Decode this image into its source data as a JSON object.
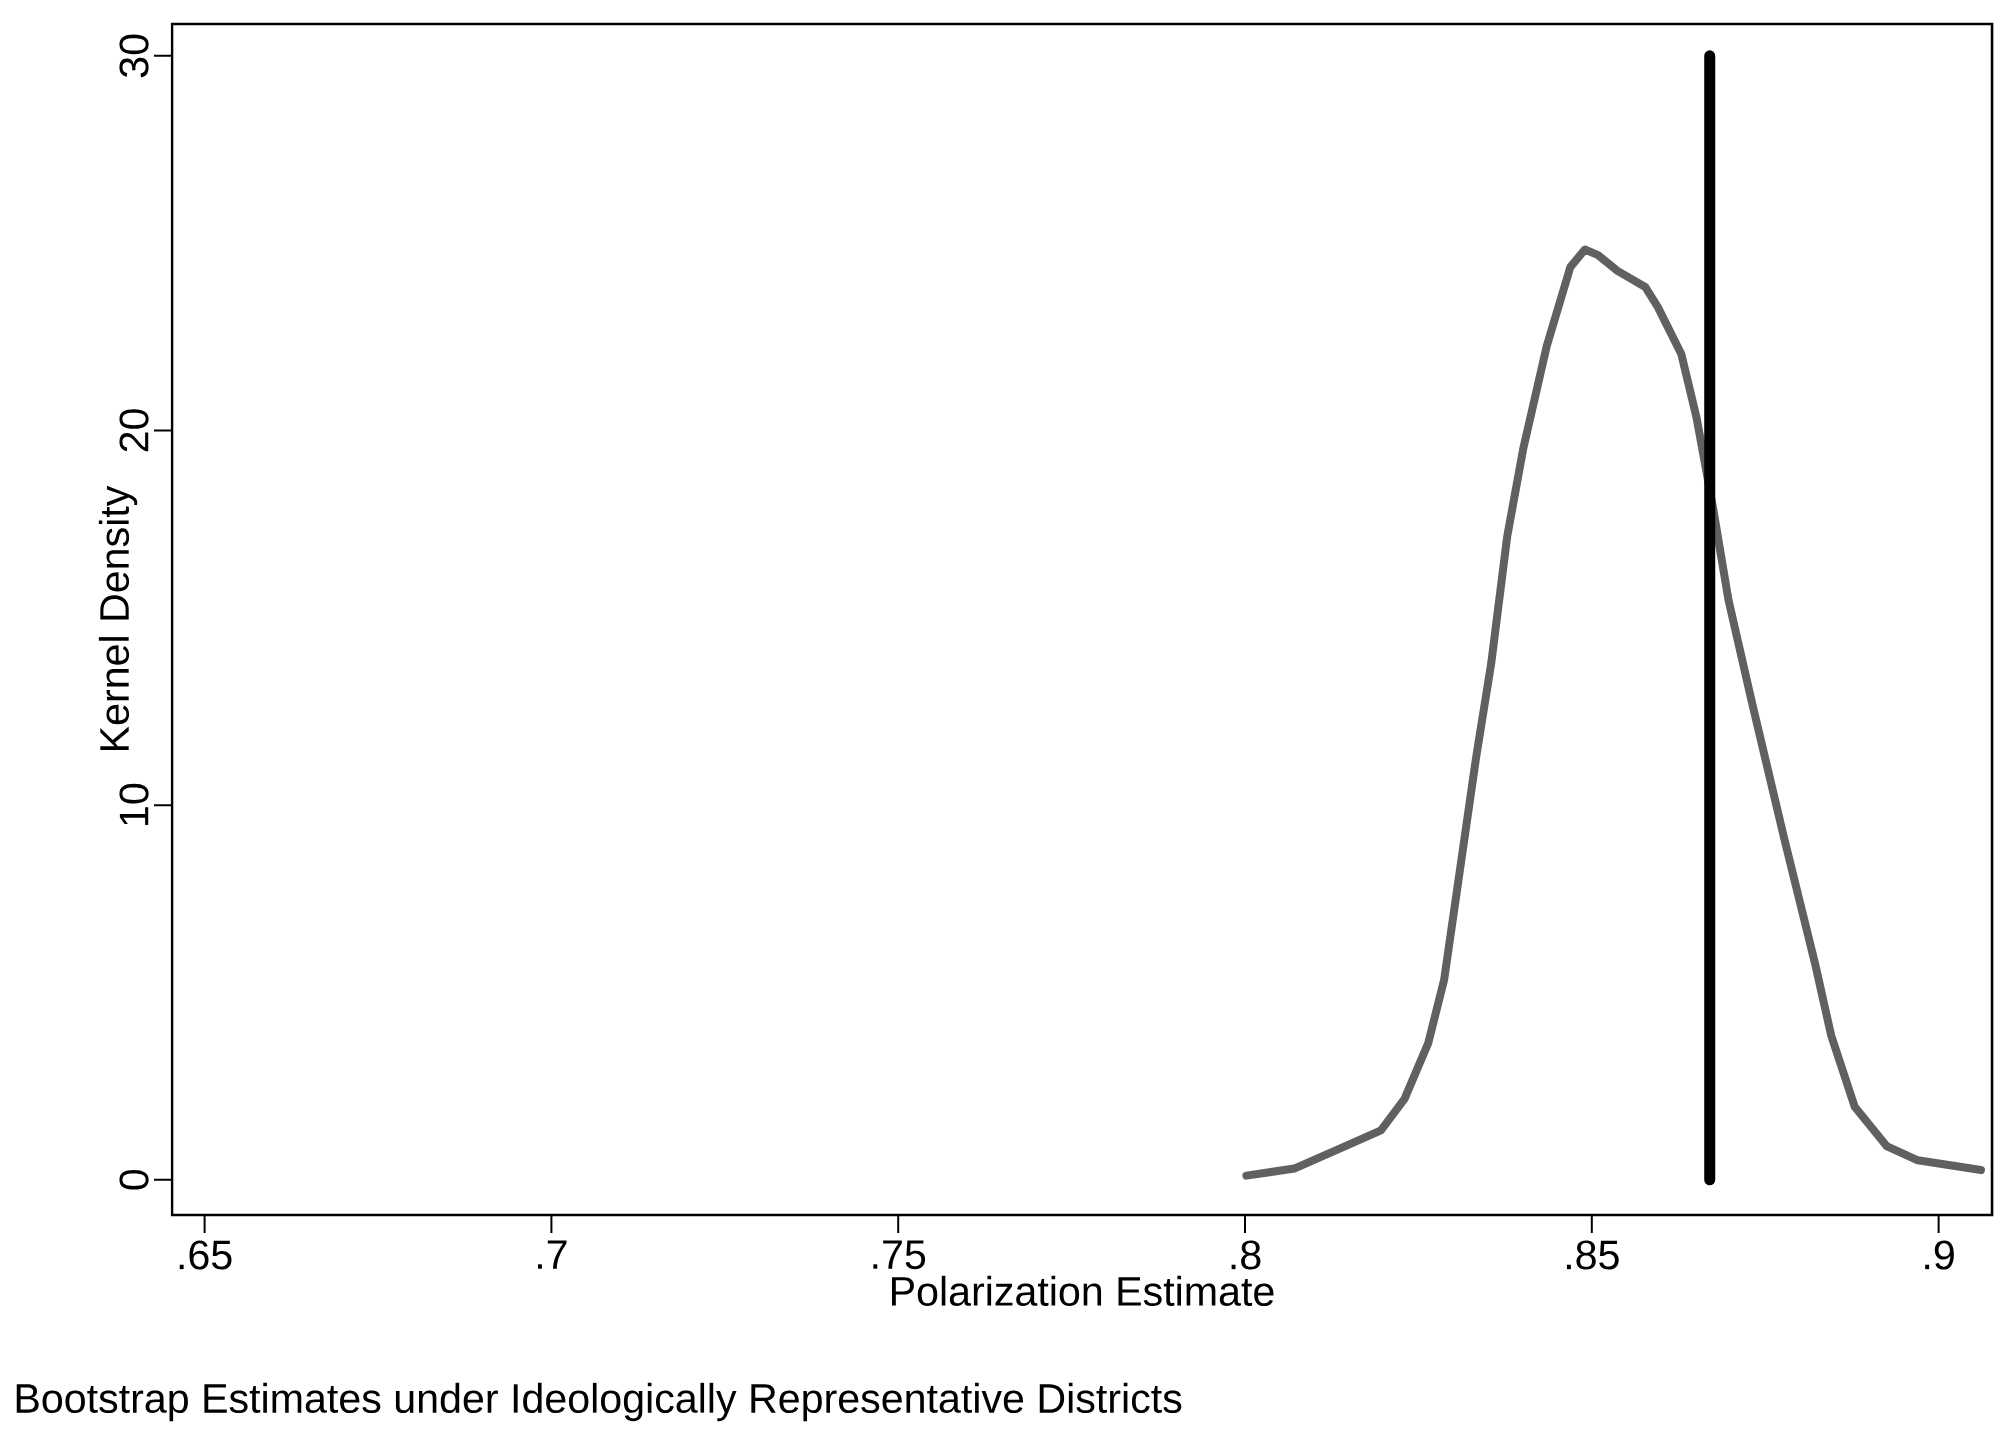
{
  "chart_data": {
    "type": "line",
    "xlabel": "Polarization Estimate",
    "ylabel": "Kernel Density",
    "annotations": [
      "Bootstrap Estimates under Ideologically Representative Districts"
    ],
    "xlim": [
      0.6453,
      0.9077
    ],
    "ylim": [
      -0.94,
      30.85
    ],
    "xticks": [
      {
        "value": 0.65,
        "label": ".65"
      },
      {
        "value": 0.7,
        "label": ".7"
      },
      {
        "value": 0.75,
        "label": ".75"
      },
      {
        "value": 0.8,
        "label": ".8"
      },
      {
        "value": 0.85,
        "label": ".85"
      },
      {
        "value": 0.9,
        "label": ".9"
      }
    ],
    "yticks": [
      0,
      10,
      20,
      30
    ],
    "grid": false,
    "series": [
      {
        "color": "#606060",
        "x": [
          0.8002,
          0.8071,
          0.8139,
          0.8196,
          0.823,
          0.8264,
          0.8287,
          0.831,
          0.8333,
          0.8355,
          0.8378,
          0.8401,
          0.8435,
          0.8469,
          0.849,
          0.8509,
          0.8537,
          0.8577,
          0.8595,
          0.8629,
          0.8651,
          0.8674,
          0.8697,
          0.8731,
          0.8777,
          0.8822,
          0.8845,
          0.8879,
          0.8925,
          0.897,
          0.9061
        ],
        "values": [
          0.11,
          0.3,
          0.85,
          1.32,
          2.16,
          3.64,
          5.33,
          8.29,
          11.25,
          13.79,
          17.17,
          19.5,
          22.25,
          24.36,
          24.83,
          24.68,
          24.26,
          23.83,
          23.3,
          22.04,
          20.34,
          18.02,
          15.48,
          12.73,
          9.14,
          5.76,
          3.86,
          1.95,
          0.9,
          0.52,
          0.26
        ]
      },
      {
        "color": "#000000",
        "x": [
          0.867,
          0.867
        ],
        "values": [
          0,
          30
        ]
      }
    ]
  }
}
